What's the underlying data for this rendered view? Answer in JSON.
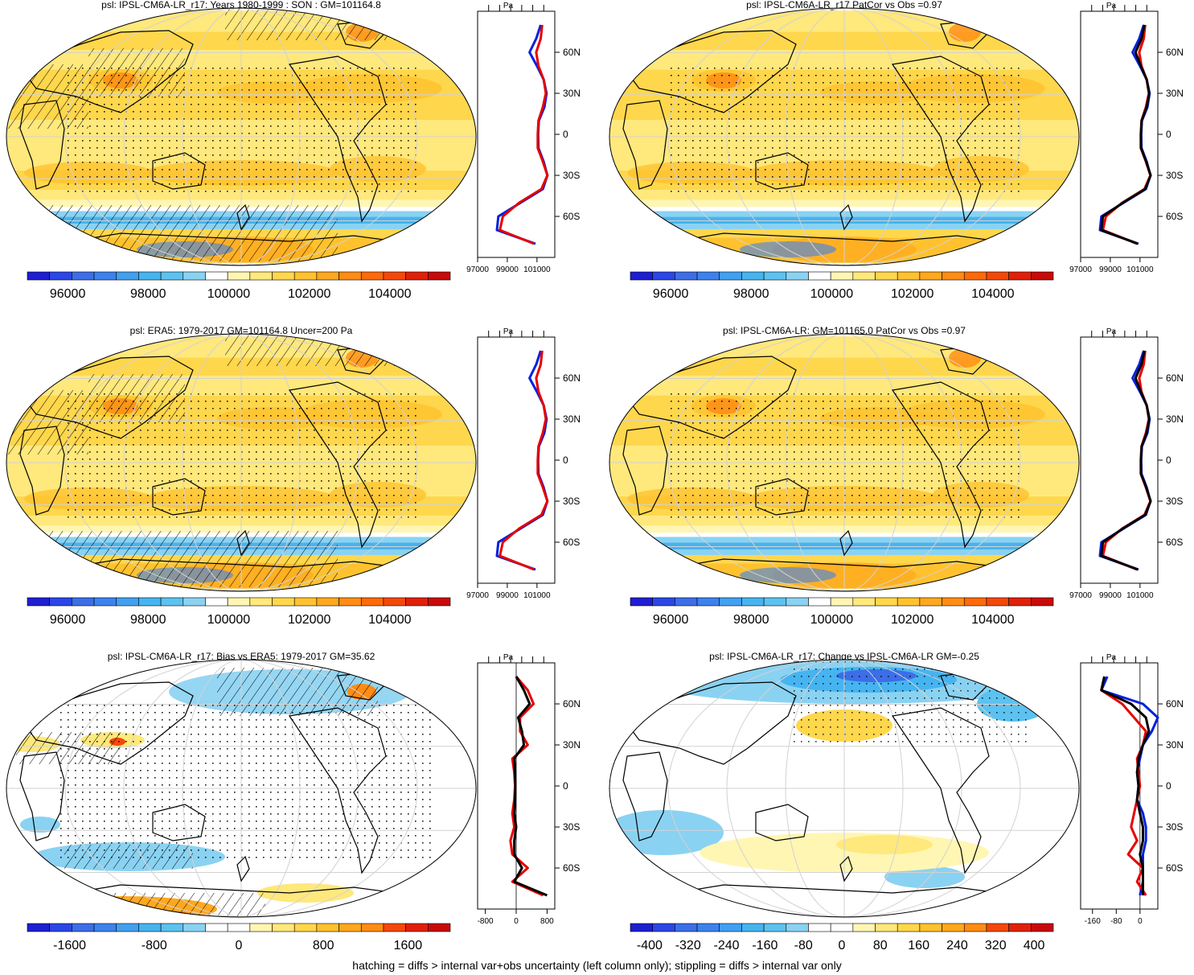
{
  "colors": {
    "abs_scale": [
      "#1e1ed2",
      "#2a46e6",
      "#3c6ee8",
      "#3c82ee",
      "#41a0f0",
      "#46b4f0",
      "#5cc2f0",
      "#8ad2f2",
      "#ffffff",
      "#fff6b4",
      "#ffe87c",
      "#ffd74c",
      "#ffc22e",
      "#ffa81e",
      "#ff8c14",
      "#ff6a0a",
      "#f4480a",
      "#e02008",
      "#c80a0a"
    ],
    "diff_scale": [
      "#1e1ed2",
      "#2a46e6",
      "#3c6ee8",
      "#3c82ee",
      "#41a0f0",
      "#46b4f0",
      "#5cc2f0",
      "#8ad2f2",
      "#ffffff",
      "#ffffff",
      "#fff6b4",
      "#ffe87c",
      "#ffd74c",
      "#ffc22e",
      "#ffa81e",
      "#ff8c14",
      "#f4480a",
      "#e02008",
      "#c80a0a"
    ],
    "model_line": "#e60000",
    "obs_line": "#0020e0",
    "ensemble_line": "#000000",
    "land_outline": "#000000",
    "grid": "#d2d2d2"
  },
  "footer": "hatching = diffs > internal var+obs uncertainty (left column only); stippling = diffs > internal var only",
  "panels": [
    {
      "title": "psl: IPSL-CM6A-LR_r17: Years 1980-1999 : SON : GM=101164.8",
      "field": "absolute",
      "colorbar_labels": [
        "96000",
        "98000",
        "100000",
        "102000",
        "104000"
      ],
      "zonal_axis_unit": "Pa",
      "zonal_x_labels": [
        "97000",
        "99000",
        "101000"
      ],
      "zonal_lat_labels": [
        "60N",
        "30N",
        "0",
        "30S",
        "60S"
      ],
      "hatching": true,
      "stippling": true
    },
    {
      "title": "psl: IPSL-CM6A-LR_r17 PatCor vs Obs =0.97",
      "field": "absolute",
      "colorbar_labels": [
        "96000",
        "98000",
        "100000",
        "102000",
        "104000"
      ],
      "zonal_axis_unit": "Pa",
      "zonal_x_labels": [
        "97000",
        "99000",
        "101000"
      ],
      "zonal_lat_labels": [
        "60N",
        "30N",
        "0",
        "30S",
        "60S"
      ],
      "hatching": false,
      "stippling": true
    },
    {
      "title": "psl: ERA5: 1979-2017 GM=101164.8 Uncer=200 Pa",
      "field": "absolute",
      "colorbar_labels": [
        "96000",
        "98000",
        "100000",
        "102000",
        "104000"
      ],
      "zonal_axis_unit": "Pa",
      "zonal_x_labels": [
        "97000",
        "99000",
        "101000"
      ],
      "zonal_lat_labels": [
        "60N",
        "30N",
        "0",
        "30S",
        "60S"
      ],
      "hatching": true,
      "stippling": true
    },
    {
      "title": "psl: IPSL-CM6A-LR: GM=101165.0 PatCor vs Obs =0.97",
      "field": "absolute",
      "colorbar_labels": [
        "96000",
        "98000",
        "100000",
        "102000",
        "104000"
      ],
      "zonal_axis_unit": "Pa",
      "zonal_x_labels": [
        "97000",
        "99000",
        "101000"
      ],
      "zonal_lat_labels": [
        "60N",
        "30N",
        "0",
        "30S",
        "60S"
      ],
      "hatching": false,
      "stippling": true
    },
    {
      "title": "psl: IPSL-CM6A-LR_r17: Bias vs ERA5: 1979-2017  GM=35.62",
      "field": "bias",
      "colorbar_labels": [
        "-1600",
        "-800",
        "0",
        "800",
        "1600"
      ],
      "zonal_axis_unit": "Pa",
      "zonal_x_labels": [
        "-800",
        "0",
        "800"
      ],
      "zonal_lat_labels": [
        "60N",
        "30N",
        "0",
        "30S",
        "60S"
      ],
      "hatching": true,
      "stippling": true
    },
    {
      "title": "psl: IPSL-CM6A-LR_r17: Change vs IPSL-CM6A-LR GM=-0.25",
      "field": "change",
      "colorbar_labels": [
        "-400",
        "-320",
        "-240",
        "-160",
        "-80",
        "0",
        "80",
        "160",
        "240",
        "320",
        "400"
      ],
      "zonal_axis_unit": "Pa",
      "zonal_x_labels": [
        "-160",
        "-80",
        "0"
      ],
      "zonal_lat_labels": [
        "60N",
        "30N",
        "0",
        "30S",
        "60S"
      ],
      "hatching": false,
      "stippling": true
    }
  ],
  "chart_data": [
    {
      "type": "heatmap",
      "title": "psl: IPSL-CM6A-LR_r17: Years 1980-1999 : SON : GM=101164.8",
      "projection": "Robinson, centered 180",
      "variable": "psl",
      "units": "Pa",
      "colorbar_range": [
        95000,
        105500
      ],
      "colorbar_ticks": [
        96000,
        98000,
        100000,
        102000,
        104000
      ],
      "zonal_mean": {
        "lat": [
          -80,
          -70,
          -60,
          -50,
          -40,
          -30,
          -20,
          -10,
          0,
          10,
          20,
          30,
          40,
          50,
          60,
          70,
          80
        ],
        "model": [
          100800,
          98500,
          98700,
          99800,
          101300,
          101700,
          101400,
          101050,
          101050,
          101100,
          101400,
          101600,
          101450,
          101100,
          100950,
          101250,
          101350
        ],
        "obs": [
          100900,
          98300,
          98400,
          99900,
          101400,
          101700,
          101450,
          101100,
          101080,
          101130,
          101500,
          101650,
          101450,
          101000,
          100500,
          100950,
          101250
        ],
        "x_ticks": [
          97000,
          99000,
          101000
        ]
      }
    },
    {
      "type": "heatmap",
      "title": "psl: IPSL-CM6A-LR_r17 PatCor vs Obs =0.97",
      "projection": "Robinson, centered 180",
      "variable": "psl",
      "units": "Pa",
      "colorbar_range": [
        95000,
        105500
      ],
      "colorbar_ticks": [
        96000,
        98000,
        100000,
        102000,
        104000
      ],
      "zonal_mean": {
        "lat": [
          -80,
          -70,
          -60,
          -50,
          -40,
          -30,
          -20,
          -10,
          0,
          10,
          20,
          30,
          40,
          50,
          60,
          70,
          80
        ],
        "model": [
          100800,
          98500,
          98700,
          99800,
          101300,
          101700,
          101400,
          101050,
          101050,
          101100,
          101400,
          101600,
          101450,
          101100,
          100950,
          101250,
          101350
        ],
        "obs": [
          100900,
          98300,
          98400,
          99900,
          101400,
          101700,
          101450,
          101100,
          101080,
          101130,
          101500,
          101650,
          101450,
          101000,
          100500,
          100950,
          101250
        ],
        "ensemble": [
          100850,
          98400,
          98500,
          99850,
          101350,
          101720,
          101420,
          101070,
          101060,
          101110,
          101450,
          101620,
          101450,
          101050,
          100700,
          101100,
          101300
        ],
        "x_ticks": [
          97000,
          99000,
          101000
        ]
      }
    },
    {
      "type": "heatmap",
      "title": "psl: ERA5: 1979-2017 GM=101164.8 Uncer=200 Pa",
      "projection": "Robinson, centered 180",
      "variable": "psl",
      "units": "Pa",
      "colorbar_range": [
        95000,
        105500
      ],
      "colorbar_ticks": [
        96000,
        98000,
        100000,
        102000,
        104000
      ],
      "zonal_mean": {
        "lat": [
          -80,
          -70,
          -60,
          -50,
          -40,
          -30,
          -20,
          -10,
          0,
          10,
          20,
          30,
          40,
          50,
          60,
          70,
          80
        ],
        "model": [
          100800,
          98500,
          98700,
          99800,
          101300,
          101700,
          101400,
          101050,
          101050,
          101100,
          101400,
          101600,
          101450,
          101100,
          100950,
          101250,
          101350
        ],
        "obs": [
          100900,
          98300,
          98400,
          99900,
          101400,
          101700,
          101450,
          101100,
          101080,
          101130,
          101500,
          101650,
          101450,
          101000,
          100500,
          100950,
          101250
        ],
        "x_ticks": [
          97000,
          99000,
          101000
        ]
      }
    },
    {
      "type": "heatmap",
      "title": "psl: IPSL-CM6A-LR: GM=101165.0 PatCor vs Obs =0.97",
      "projection": "Robinson, centered 180",
      "variable": "psl",
      "units": "Pa",
      "colorbar_range": [
        95000,
        105500
      ],
      "colorbar_ticks": [
        96000,
        98000,
        100000,
        102000,
        104000
      ],
      "zonal_mean": {
        "lat": [
          -80,
          -70,
          -60,
          -50,
          -40,
          -30,
          -20,
          -10,
          0,
          10,
          20,
          30,
          40,
          50,
          60,
          70,
          80
        ],
        "model": [
          100800,
          98500,
          98700,
          99800,
          101300,
          101700,
          101400,
          101050,
          101050,
          101100,
          101400,
          101600,
          101450,
          101100,
          100950,
          101250,
          101350
        ],
        "obs": [
          100900,
          98300,
          98400,
          99900,
          101400,
          101700,
          101450,
          101100,
          101080,
          101130,
          101500,
          101650,
          101450,
          101000,
          100500,
          100950,
          101250
        ],
        "ensemble": [
          100850,
          98400,
          98500,
          99850,
          101350,
          101720,
          101420,
          101070,
          101060,
          101110,
          101450,
          101620,
          101450,
          101050,
          100700,
          101100,
          101300
        ],
        "x_ticks": [
          97000,
          99000,
          101000
        ]
      }
    },
    {
      "type": "heatmap",
      "title": "psl: IPSL-CM6A-LR_r17: Bias vs ERA5: 1979-2017  GM=35.62",
      "projection": "Robinson, centered 180",
      "variable": "psl bias",
      "units": "Pa",
      "colorbar_range": [
        -2000,
        2000
      ],
      "colorbar_ticks": [
        -1600,
        -800,
        0,
        800,
        1600
      ],
      "zonal_mean": {
        "lat": [
          -80,
          -70,
          -60,
          -50,
          -40,
          -30,
          -20,
          -10,
          0,
          10,
          20,
          30,
          40,
          50,
          60,
          70,
          80
        ],
        "model": [
          700,
          -100,
          300,
          -100,
          -150,
          -50,
          -100,
          -50,
          -30,
          -50,
          -100,
          300,
          100,
          100,
          450,
          300,
          0
        ],
        "ensemble": [
          800,
          -50,
          150,
          -50,
          -50,
          0,
          -50,
          -30,
          -20,
          -30,
          -50,
          200,
          150,
          50,
          350,
          200,
          0
        ],
        "x_ticks": [
          -800,
          0,
          800
        ]
      }
    },
    {
      "type": "heatmap",
      "title": "psl: IPSL-CM6A-LR_r17: Change vs IPSL-CM6A-LR GM=-0.25",
      "projection": "Robinson, centered 180",
      "variable": "psl change",
      "units": "Pa",
      "colorbar_range": [
        -440,
        440
      ],
      "colorbar_ticks": [
        -400,
        -320,
        -240,
        -160,
        -80,
        0,
        80,
        160,
        240,
        320,
        400
      ],
      "zonal_mean": {
        "lat": [
          -80,
          -70,
          -60,
          -50,
          -40,
          -30,
          -20,
          -10,
          0,
          10,
          20,
          30,
          40,
          50,
          60,
          70,
          80
        ],
        "model": [
          20,
          -10,
          10,
          -40,
          -10,
          -30,
          -20,
          -10,
          0,
          -5,
          -10,
          10,
          20,
          -20,
          -60,
          -130,
          -120
        ],
        "obs": [
          0,
          10,
          10,
          10,
          20,
          20,
          10,
          -10,
          -5,
          -10,
          0,
          10,
          40,
          60,
          10,
          -130,
          -110
        ],
        "ensemble": [
          10,
          10,
          10,
          0,
          10,
          10,
          0,
          -10,
          -5,
          -10,
          -5,
          10,
          30,
          20,
          -30,
          -130,
          -120
        ],
        "x_ticks": [
          -160,
          -80,
          0
        ]
      }
    }
  ]
}
